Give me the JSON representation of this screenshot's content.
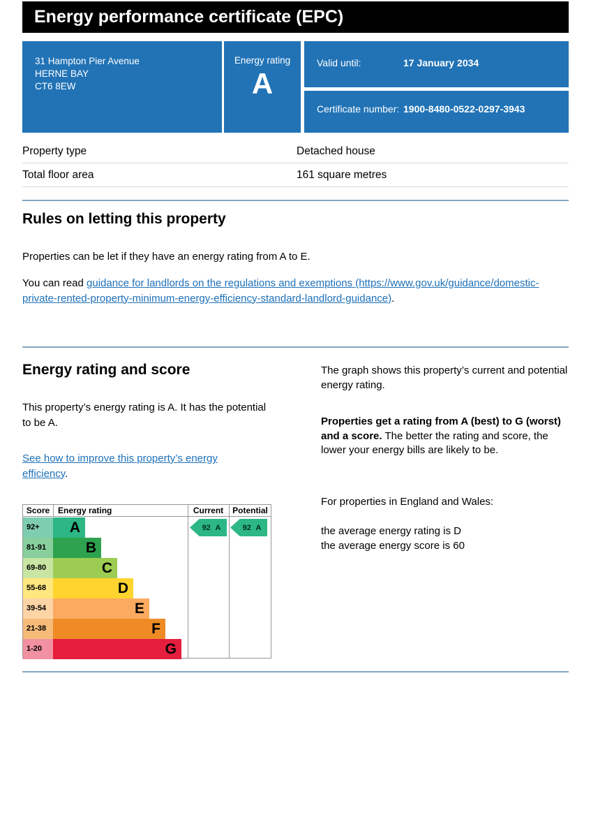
{
  "page": {
    "title": "Energy performance certificate (EPC)"
  },
  "summary": {
    "address_lines": [
      "31 Hampton Pier Avenue",
      "HERNE BAY",
      "CT6 8EW"
    ],
    "energy_rating_label": "Energy rating",
    "energy_rating_value": "A",
    "valid_until_label": "Valid until:",
    "valid_until_value": "17 January 2034",
    "certificate_number_label": "Certificate number:",
    "certificate_number_value": "1900-8480-0522-0297-3943"
  },
  "property_details": {
    "rows": [
      {
        "label": "Property type",
        "value": "Detached house"
      },
      {
        "label": "Total floor area",
        "value": "161 square metres"
      }
    ]
  },
  "rules_section": {
    "heading": "Rules on letting this property",
    "paragraph1": "Properties can be let if they have an energy rating from A to E.",
    "paragraph2_prefix": "You can read ",
    "link_text": "guidance for landlords on the regulations and exemptions (https://www.gov.uk/guidance/domestic-private-rented-property-minimum-energy-efficiency-standard-landlord-guidance)",
    "paragraph2_suffix": "."
  },
  "rating_section": {
    "heading": "Energy rating and score",
    "paragraph1": "This property’s energy rating is A. It has the potential to be A.",
    "link_text": "See how to improve this property’s energy efficiency",
    "link_suffix": ".",
    "right": {
      "paragraph1": "The graph shows this property’s current and potential energy rating.",
      "paragraph2_bold": "Properties get a rating from A (best) to G (worst) and a score.",
      "paragraph2_rest": " The better the rating and score, the lower your energy bills are likely to be.",
      "paragraph3": "For properties in England and Wales:",
      "average_rating_line": "the average energy rating is D",
      "average_score_line": "the average energy score is 60"
    }
  },
  "chart_data": {
    "type": "bar",
    "title": "Energy rating and score (EPC band chart)",
    "columns": [
      "Score",
      "Energy rating",
      "Current",
      "Potential"
    ],
    "bands": [
      {
        "score_range": "92+",
        "rating": "A",
        "bar_color": "#2cb784",
        "cell_color": "#7fcdb0"
      },
      {
        "score_range": "81-91",
        "rating": "B",
        "bar_color": "#2ea24e",
        "cell_color": "#88cf9d"
      },
      {
        "score_range": "69-80",
        "rating": "C",
        "bar_color": "#9ccc51",
        "cell_color": "#c9e5a4"
      },
      {
        "score_range": "55-68",
        "rating": "D",
        "bar_color": "#ffd42f",
        "cell_color": "#ffe77f"
      },
      {
        "score_range": "39-54",
        "rating": "E",
        "bar_color": "#fbaa60",
        "cell_color": "#fdd4a5"
      },
      {
        "score_range": "21-38",
        "rating": "F",
        "bar_color": "#ee8b25",
        "cell_color": "#f6ba79"
      },
      {
        "score_range": "1-20",
        "rating": "G",
        "bar_color": "#e51e3e",
        "cell_color": "#f191a2"
      }
    ],
    "current": {
      "score": "92",
      "rating": "A"
    },
    "potential": {
      "score": "92",
      "rating": "A"
    },
    "arrow_color": "#2cb784",
    "legend_position": "top",
    "grid": false
  },
  "colors": {
    "header_bg": "#000000",
    "panel_blue": "#2173b6",
    "link_blue": "#1d70b8",
    "divider_blue": "#84a6c0"
  }
}
